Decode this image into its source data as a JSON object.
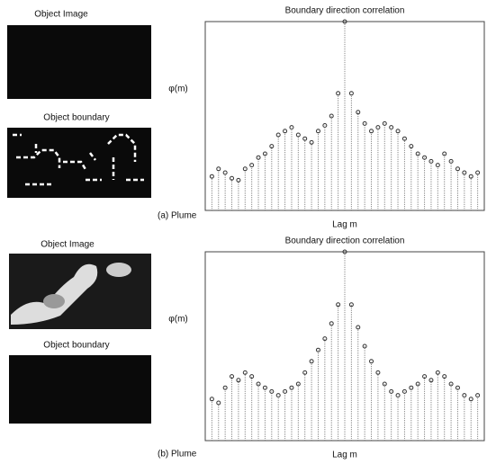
{
  "panels": [
    {
      "image_title": "Object Image",
      "boundary_title": "Object boundary",
      "caption": "(a) Plume"
    },
    {
      "image_title": "Object Image",
      "boundary_title": "Object boundary",
      "caption": "(b) Plume"
    }
  ],
  "chart_data": [
    {
      "type": "stem",
      "title": "Boundary direction correlation",
      "y_label": "φ(m)",
      "x_label": "Lag m",
      "x": [
        -40,
        -38,
        -36,
        -34,
        -32,
        -30,
        -28,
        -26,
        -24,
        -22,
        -20,
        -18,
        -16,
        -14,
        -12,
        -10,
        -8,
        -6,
        -4,
        -2,
        0,
        2,
        4,
        6,
        8,
        10,
        12,
        14,
        16,
        18,
        20,
        22,
        24,
        26,
        28,
        30,
        32,
        34,
        36,
        38,
        40
      ],
      "values": [
        0.18,
        0.22,
        0.2,
        0.17,
        0.16,
        0.22,
        0.24,
        0.28,
        0.3,
        0.34,
        0.4,
        0.42,
        0.44,
        0.4,
        0.38,
        0.36,
        0.42,
        0.45,
        0.5,
        0.62,
        1,
        0.62,
        0.52,
        0.46,
        0.42,
        0.44,
        0.46,
        0.44,
        0.42,
        0.38,
        0.34,
        0.3,
        0.28,
        0.26,
        0.24,
        0.3,
        0.26,
        0.22,
        0.2,
        0.18,
        0.2
      ],
      "xlim": [
        -42,
        42
      ],
      "ylim": [
        0,
        1
      ],
      "grid": true,
      "color": "#333333"
    },
    {
      "type": "stem",
      "title": "Boundary direction correlation",
      "y_label": "φ(m)",
      "x_label": "Lag m",
      "x": [
        -40,
        -38,
        -36,
        -34,
        -32,
        -30,
        -28,
        -26,
        -24,
        -22,
        -20,
        -18,
        -16,
        -14,
        -12,
        -10,
        -8,
        -6,
        -4,
        -2,
        0,
        2,
        4,
        6,
        8,
        10,
        12,
        14,
        16,
        18,
        20,
        22,
        24,
        26,
        28,
        30,
        32,
        34,
        36,
        38,
        40
      ],
      "values": [
        0.22,
        0.2,
        0.28,
        0.34,
        0.32,
        0.36,
        0.34,
        0.3,
        0.28,
        0.26,
        0.24,
        0.26,
        0.28,
        0.3,
        0.36,
        0.42,
        0.48,
        0.54,
        0.62,
        0.72,
        1,
        0.72,
        0.6,
        0.5,
        0.42,
        0.36,
        0.3,
        0.26,
        0.24,
        0.26,
        0.28,
        0.3,
        0.34,
        0.32,
        0.36,
        0.34,
        0.3,
        0.28,
        0.24,
        0.22,
        0.24
      ],
      "xlim": [
        -42,
        42
      ],
      "ylim": [
        0,
        1
      ],
      "grid": true,
      "color": "#333333"
    }
  ]
}
